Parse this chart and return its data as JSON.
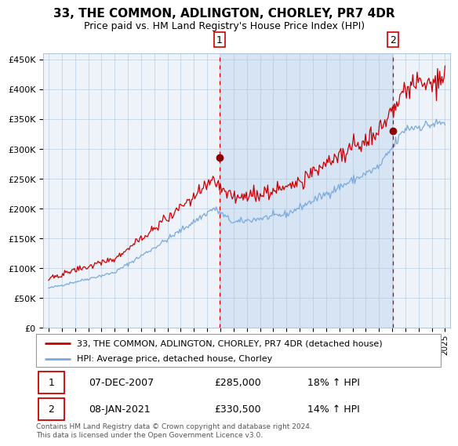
{
  "title": "33, THE COMMON, ADLINGTON, CHORLEY, PR7 4DR",
  "subtitle": "Price paid vs. HM Land Registry's House Price Index (HPI)",
  "legend_line1": "33, THE COMMON, ADLINGTON, CHORLEY, PR7 4DR (detached house)",
  "legend_line2": "HPI: Average price, detached house, Chorley",
  "annotation1_date": "07-DEC-2007",
  "annotation1_price": "£285,000",
  "annotation1_hpi": "18% ↑ HPI",
  "annotation1_year": 2007.92,
  "annotation1_value": 285000,
  "annotation2_date": "08-JAN-2021",
  "annotation2_price": "£330,500",
  "annotation2_hpi": "14% ↑ HPI",
  "annotation2_year": 2021.03,
  "annotation2_value": 330500,
  "hpi_color": "#7aaadd",
  "price_color": "#cc0000",
  "dot_color": "#8b0000",
  "footer": "Contains HM Land Registry data © Crown copyright and database right 2024.\nThis data is licensed under the Open Government Licence v3.0.",
  "ylim": [
    0,
    460000
  ],
  "yticks": [
    0,
    50000,
    100000,
    150000,
    200000,
    250000,
    300000,
    350000,
    400000,
    450000
  ],
  "xstart": 1995,
  "xend": 2025
}
